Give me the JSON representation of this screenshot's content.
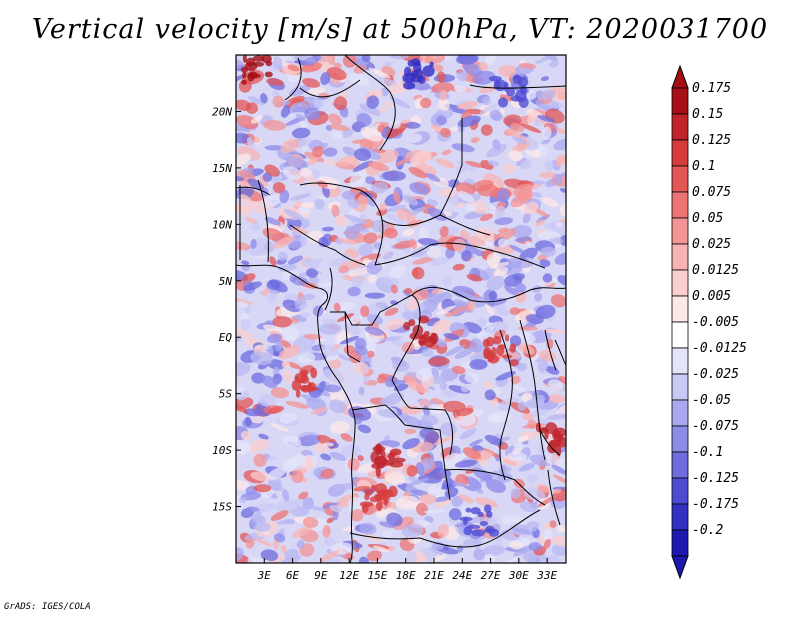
{
  "title": "Vertical velocity [m/s] at 500hPa, VT: 2020031700",
  "footer": "GrADS: IGES/COLA",
  "map": {
    "lon_range": [
      0,
      35
    ],
    "lat_range": [
      -20,
      25
    ],
    "lat_ticks": [
      {
        "value": 20,
        "label": "20N"
      },
      {
        "value": 15,
        "label": "15N"
      },
      {
        "value": 10,
        "label": "10N"
      },
      {
        "value": 5,
        "label": "5N"
      },
      {
        "value": 0,
        "label": "EQ"
      },
      {
        "value": -5,
        "label": "5S"
      },
      {
        "value": -10,
        "label": "10S"
      },
      {
        "value": -15,
        "label": "15S"
      }
    ],
    "lon_ticks": [
      {
        "value": 3,
        "label": "3E"
      },
      {
        "value": 6,
        "label": "6E"
      },
      {
        "value": 9,
        "label": "9E"
      },
      {
        "value": 12,
        "label": "12E"
      },
      {
        "value": 15,
        "label": "15E"
      },
      {
        "value": 18,
        "label": "18E"
      },
      {
        "value": 21,
        "label": "21E"
      },
      {
        "value": 24,
        "label": "24E"
      },
      {
        "value": 27,
        "label": "27E"
      },
      {
        "value": 30,
        "label": "30E"
      },
      {
        "value": 33,
        "label": "33E"
      }
    ]
  },
  "colorbar": {
    "levels": [
      {
        "label": "0.175",
        "color": "#a50f15"
      },
      {
        "label": "0.15",
        "color": "#c0242a"
      },
      {
        "label": "0.125",
        "color": "#d63c3c"
      },
      {
        "label": "0.1",
        "color": "#e35656"
      },
      {
        "label": "0.075",
        "color": "#ee7474"
      },
      {
        "label": "0.05",
        "color": "#f49494"
      },
      {
        "label": "0.025",
        "color": "#f8b4b4"
      },
      {
        "label": "0.0125",
        "color": "#fbcfcf"
      },
      {
        "label": "0.005",
        "color": "#fde8e8"
      },
      {
        "label": "-0.005",
        "color": "#ffffff"
      },
      {
        "label": "-0.0125",
        "color": "#e4e4fb"
      },
      {
        "label": "-0.025",
        "color": "#c9c9f5"
      },
      {
        "label": "-0.05",
        "color": "#abaaf0"
      },
      {
        "label": "-0.075",
        "color": "#8d8be8"
      },
      {
        "label": "-0.1",
        "color": "#6e6cdf"
      },
      {
        "label": "-0.125",
        "color": "#4f4cd3"
      },
      {
        "label": "-0.175",
        "color": "#3330c4"
      },
      {
        "label": "-0.2",
        "color": "#1c18b0"
      }
    ],
    "top_arrow_color": "#a50f15",
    "bottom_arrow_color": "#1c18b0"
  }
}
